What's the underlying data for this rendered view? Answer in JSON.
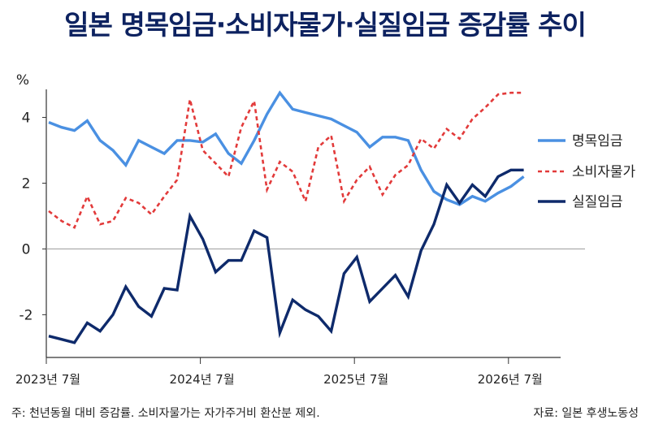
{
  "chart_data": {
    "type": "line",
    "title": "일본 명목임금·소비자물가·실질임금 증감률 추이",
    "ylabel": "%",
    "ylim": [
      -3.3,
      5.1
    ],
    "yticks": [
      -2,
      0,
      2,
      4
    ],
    "xlim": [
      0,
      48
    ],
    "xticks": [
      {
        "index": 0,
        "label": "2023년 7월"
      },
      {
        "index": 12,
        "label": "2024년 7월"
      },
      {
        "index": 24,
        "label": "2025년 7월"
      },
      {
        "index": 36,
        "label": "2026년 7월"
      }
    ],
    "grid": "zero-line",
    "legend_position": "right",
    "series": [
      {
        "name": "명목임금",
        "color": "#4a90e2",
        "style": "solid",
        "x": [
          0,
          1,
          2,
          3,
          4,
          5,
          6,
          7,
          8,
          9,
          10,
          11,
          12,
          13,
          14,
          15,
          16,
          17,
          18,
          19,
          20,
          21,
          22,
          23,
          24,
          25,
          26,
          27,
          28,
          29,
          30,
          31,
          32,
          33,
          34,
          35,
          36,
          37
        ],
        "values": [
          3.85,
          3.7,
          3.6,
          3.9,
          3.3,
          3.0,
          2.55,
          3.3,
          3.1,
          2.9,
          3.3,
          3.3,
          3.25,
          3.5,
          2.9,
          2.6,
          3.3,
          4.1,
          4.75,
          4.25,
          4.15,
          4.05,
          3.95,
          3.75,
          3.55,
          3.1,
          3.4,
          3.4,
          3.3,
          2.4,
          1.75,
          1.5,
          1.35,
          1.6,
          1.45,
          1.7,
          1.9,
          2.2
        ]
      },
      {
        "name": "소비자물가",
        "color": "#e23a3a",
        "style": "dashed",
        "x": [
          0,
          1,
          2,
          3,
          4,
          5,
          6,
          7,
          8,
          9,
          10,
          11,
          12,
          13,
          14,
          15,
          16,
          17,
          18,
          19,
          20,
          21,
          22,
          23,
          24,
          25,
          26,
          27,
          28,
          29,
          30,
          31,
          32,
          33,
          34,
          35,
          36,
          37
        ],
        "values": [
          1.15,
          0.85,
          0.65,
          1.6,
          0.75,
          0.85,
          1.55,
          1.4,
          1.05,
          1.6,
          2.1,
          4.55,
          3.0,
          2.6,
          2.2,
          3.7,
          4.5,
          1.8,
          2.65,
          2.35,
          1.45,
          3.1,
          3.45,
          1.45,
          2.1,
          2.5,
          1.65,
          2.25,
          2.55,
          3.35,
          3.05,
          3.65,
          3.35,
          3.95,
          4.3,
          4.7,
          4.75,
          4.75
        ]
      },
      {
        "name": "실질임금",
        "color": "#0e2a6b",
        "style": "solid",
        "x": [
          0,
          1,
          2,
          3,
          4,
          5,
          6,
          7,
          8,
          9,
          10,
          11,
          12,
          13,
          14,
          15,
          16,
          17,
          18,
          19,
          20,
          21,
          22,
          23,
          24,
          25,
          26,
          27,
          28,
          29,
          30,
          31,
          32,
          33,
          34,
          35,
          36,
          37
        ],
        "values": [
          -2.65,
          -2.75,
          -2.85,
          -2.25,
          -2.5,
          -2.0,
          -1.15,
          -1.75,
          -2.05,
          -1.2,
          -1.25,
          1.0,
          0.3,
          -0.7,
          -0.35,
          -0.35,
          0.55,
          0.35,
          -2.55,
          -1.55,
          -1.85,
          -2.05,
          -2.5,
          -0.75,
          -0.25,
          -1.6,
          -1.2,
          -0.8,
          -1.45,
          -0.05,
          0.75,
          1.95,
          1.4,
          1.95,
          1.6,
          2.2,
          2.4,
          2.4
        ]
      }
    ],
    "footnote": "주: 천년동월 대비 증감률. 소비자물가는 자가주거비 환산분 제외.",
    "source": "자료: 일본 후생노동성"
  }
}
